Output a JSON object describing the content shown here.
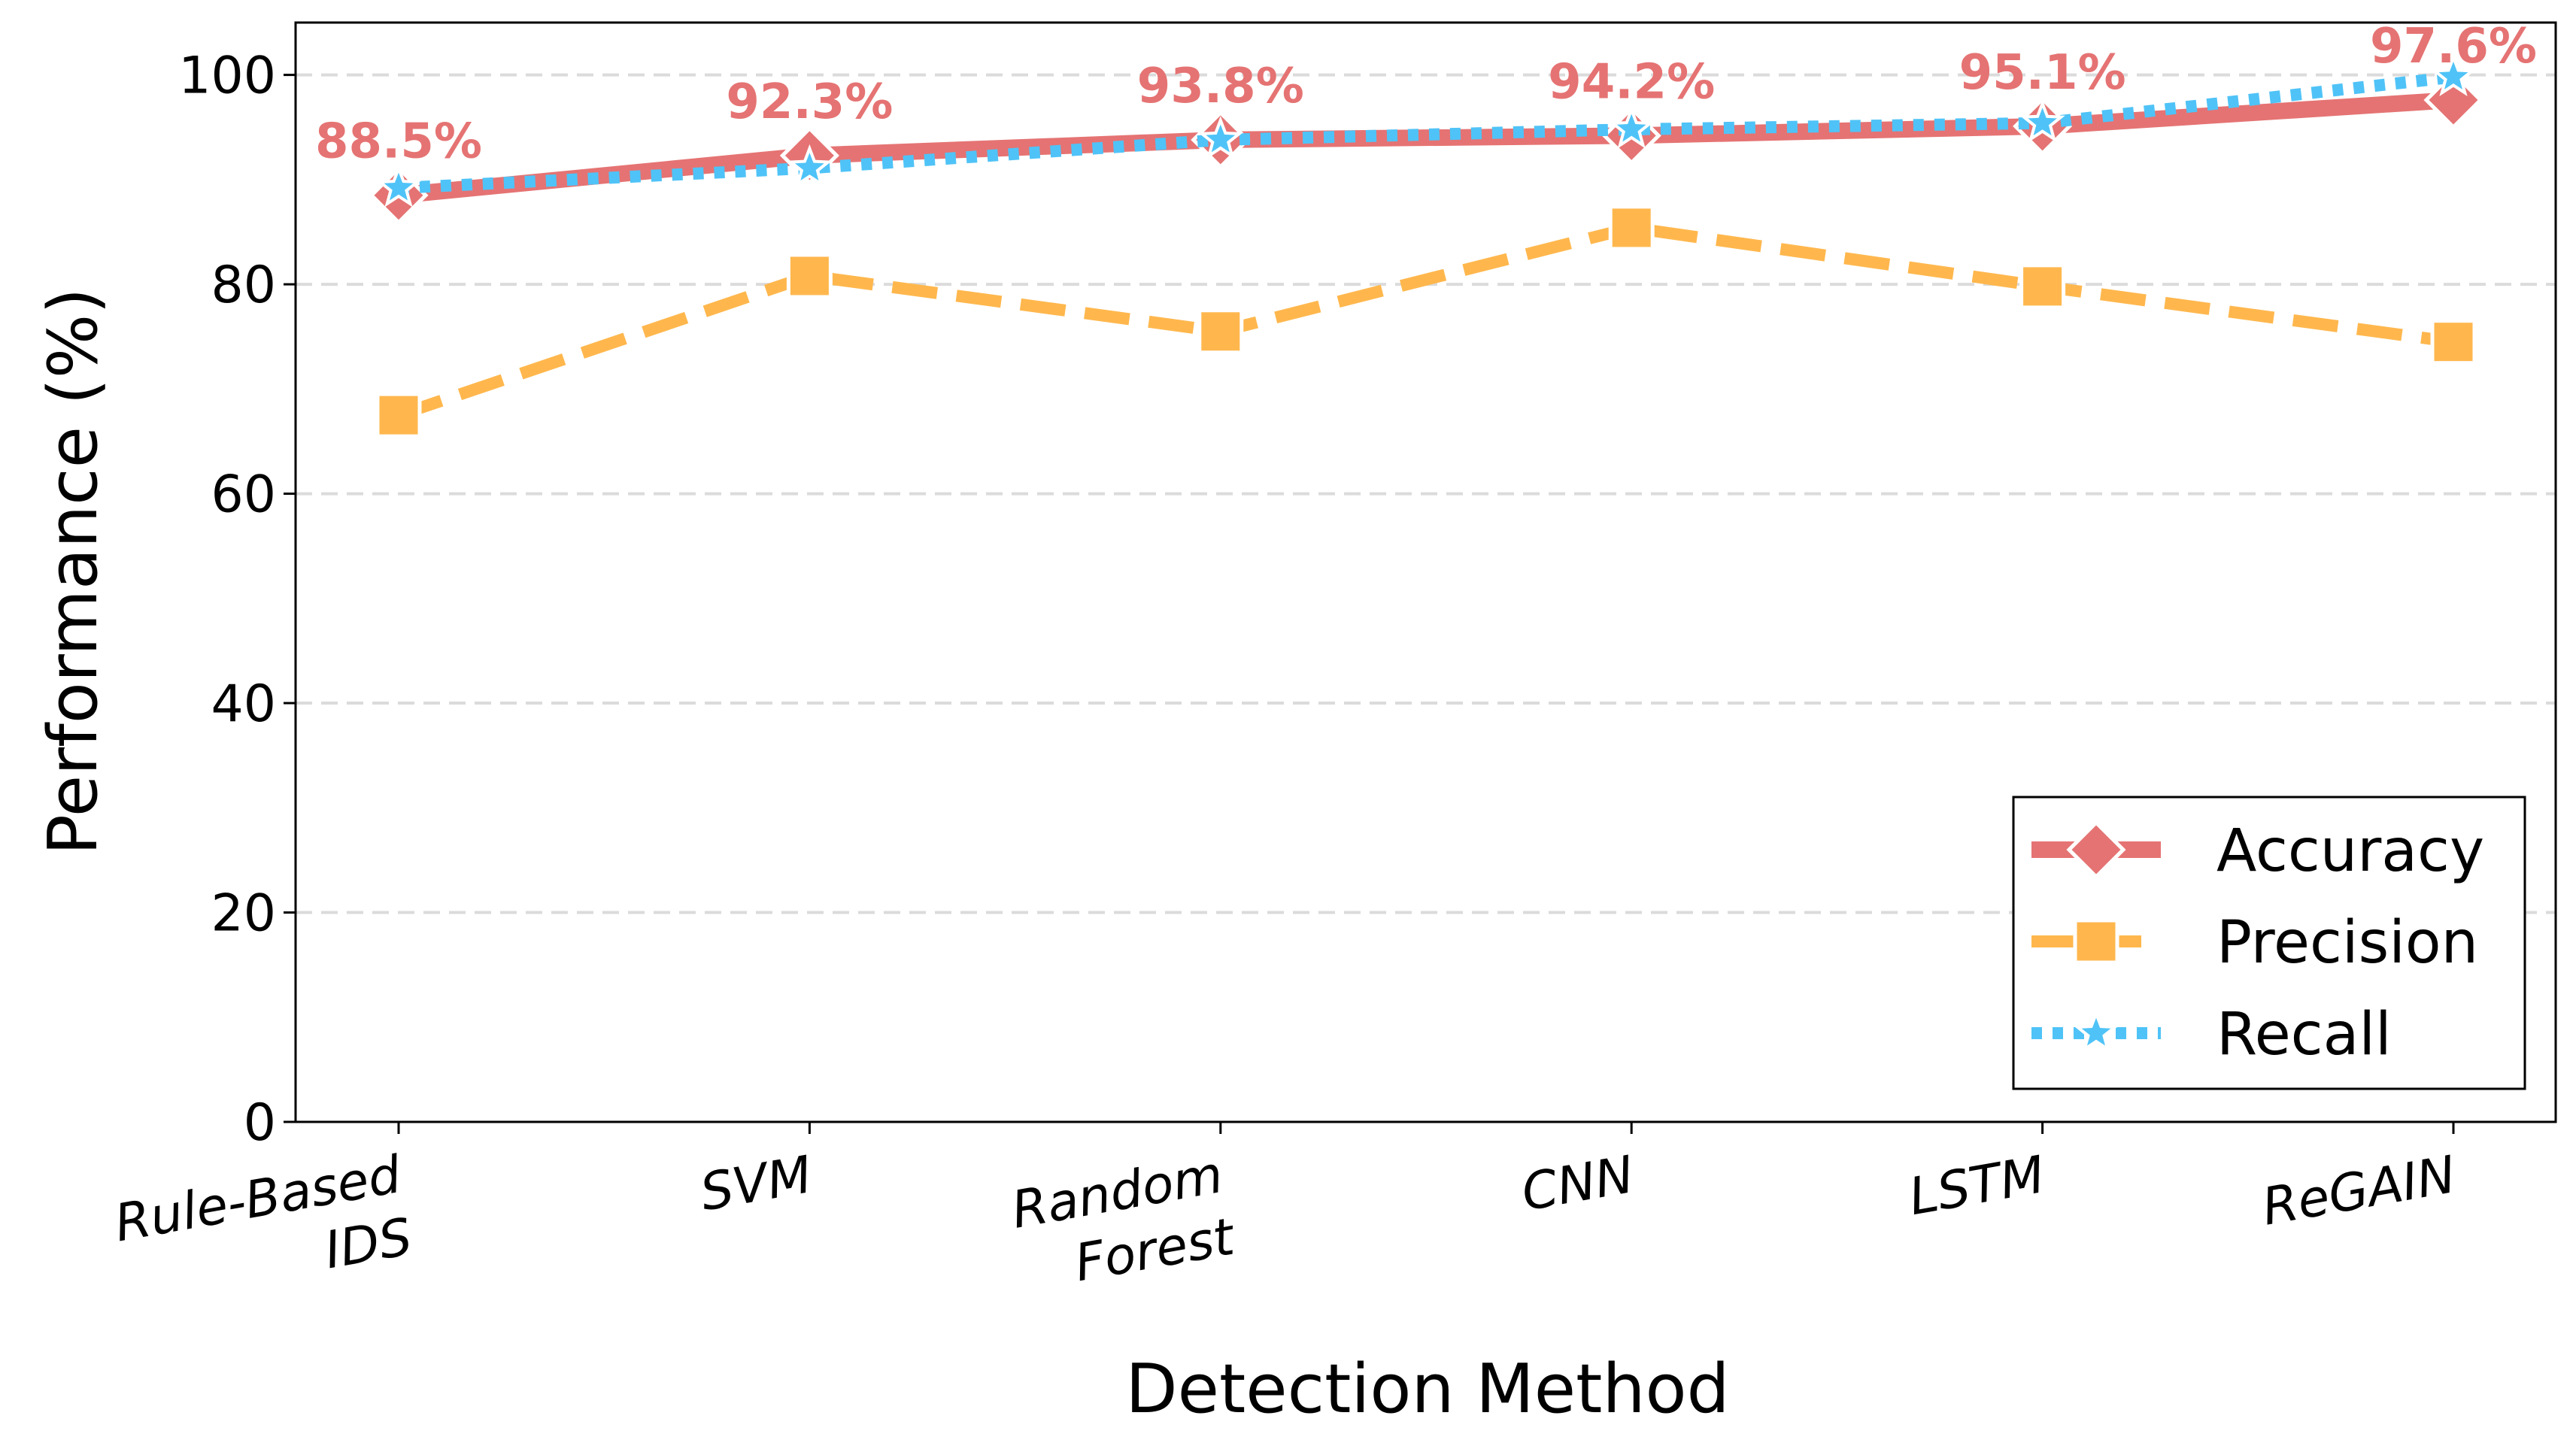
{
  "chart_data": {
    "type": "line",
    "title": "",
    "xlabel": "Detection Method",
    "ylabel": "Performance (%)",
    "ylim": [
      0,
      105
    ],
    "yticks": [
      0,
      20,
      40,
      60,
      80,
      100
    ],
    "grid": "horizontal dashed",
    "legend_position": "bottom-right",
    "categories": [
      [
        "Rule-Based",
        "IDS"
      ],
      [
        "SVM"
      ],
      [
        "Random",
        "Forest"
      ],
      [
        "CNN"
      ],
      [
        "LSTM"
      ],
      [
        "ReGAIN"
      ]
    ],
    "series": [
      {
        "name": "Accuracy",
        "color": "#E57373",
        "line_style": "solid",
        "marker": "diamond",
        "values": [
          88.5,
          92.3,
          93.8,
          94.2,
          95.1,
          97.6
        ]
      },
      {
        "name": "Precision",
        "color": "#FFB74D",
        "line_style": "dashed",
        "marker": "square",
        "values": [
          67.5,
          80.8,
          75.5,
          85.4,
          79.8,
          74.5
        ]
      },
      {
        "name": "Recall",
        "color": "#4FC3F7",
        "line_style": "dotted",
        "marker": "star",
        "values": [
          89.2,
          91.1,
          93.8,
          94.8,
          95.4,
          99.8
        ]
      }
    ],
    "annotations": [
      "88.5%",
      "92.3%",
      "93.8%",
      "94.2%",
      "95.1%",
      "97.6%"
    ],
    "annotation_series": "Accuracy"
  }
}
